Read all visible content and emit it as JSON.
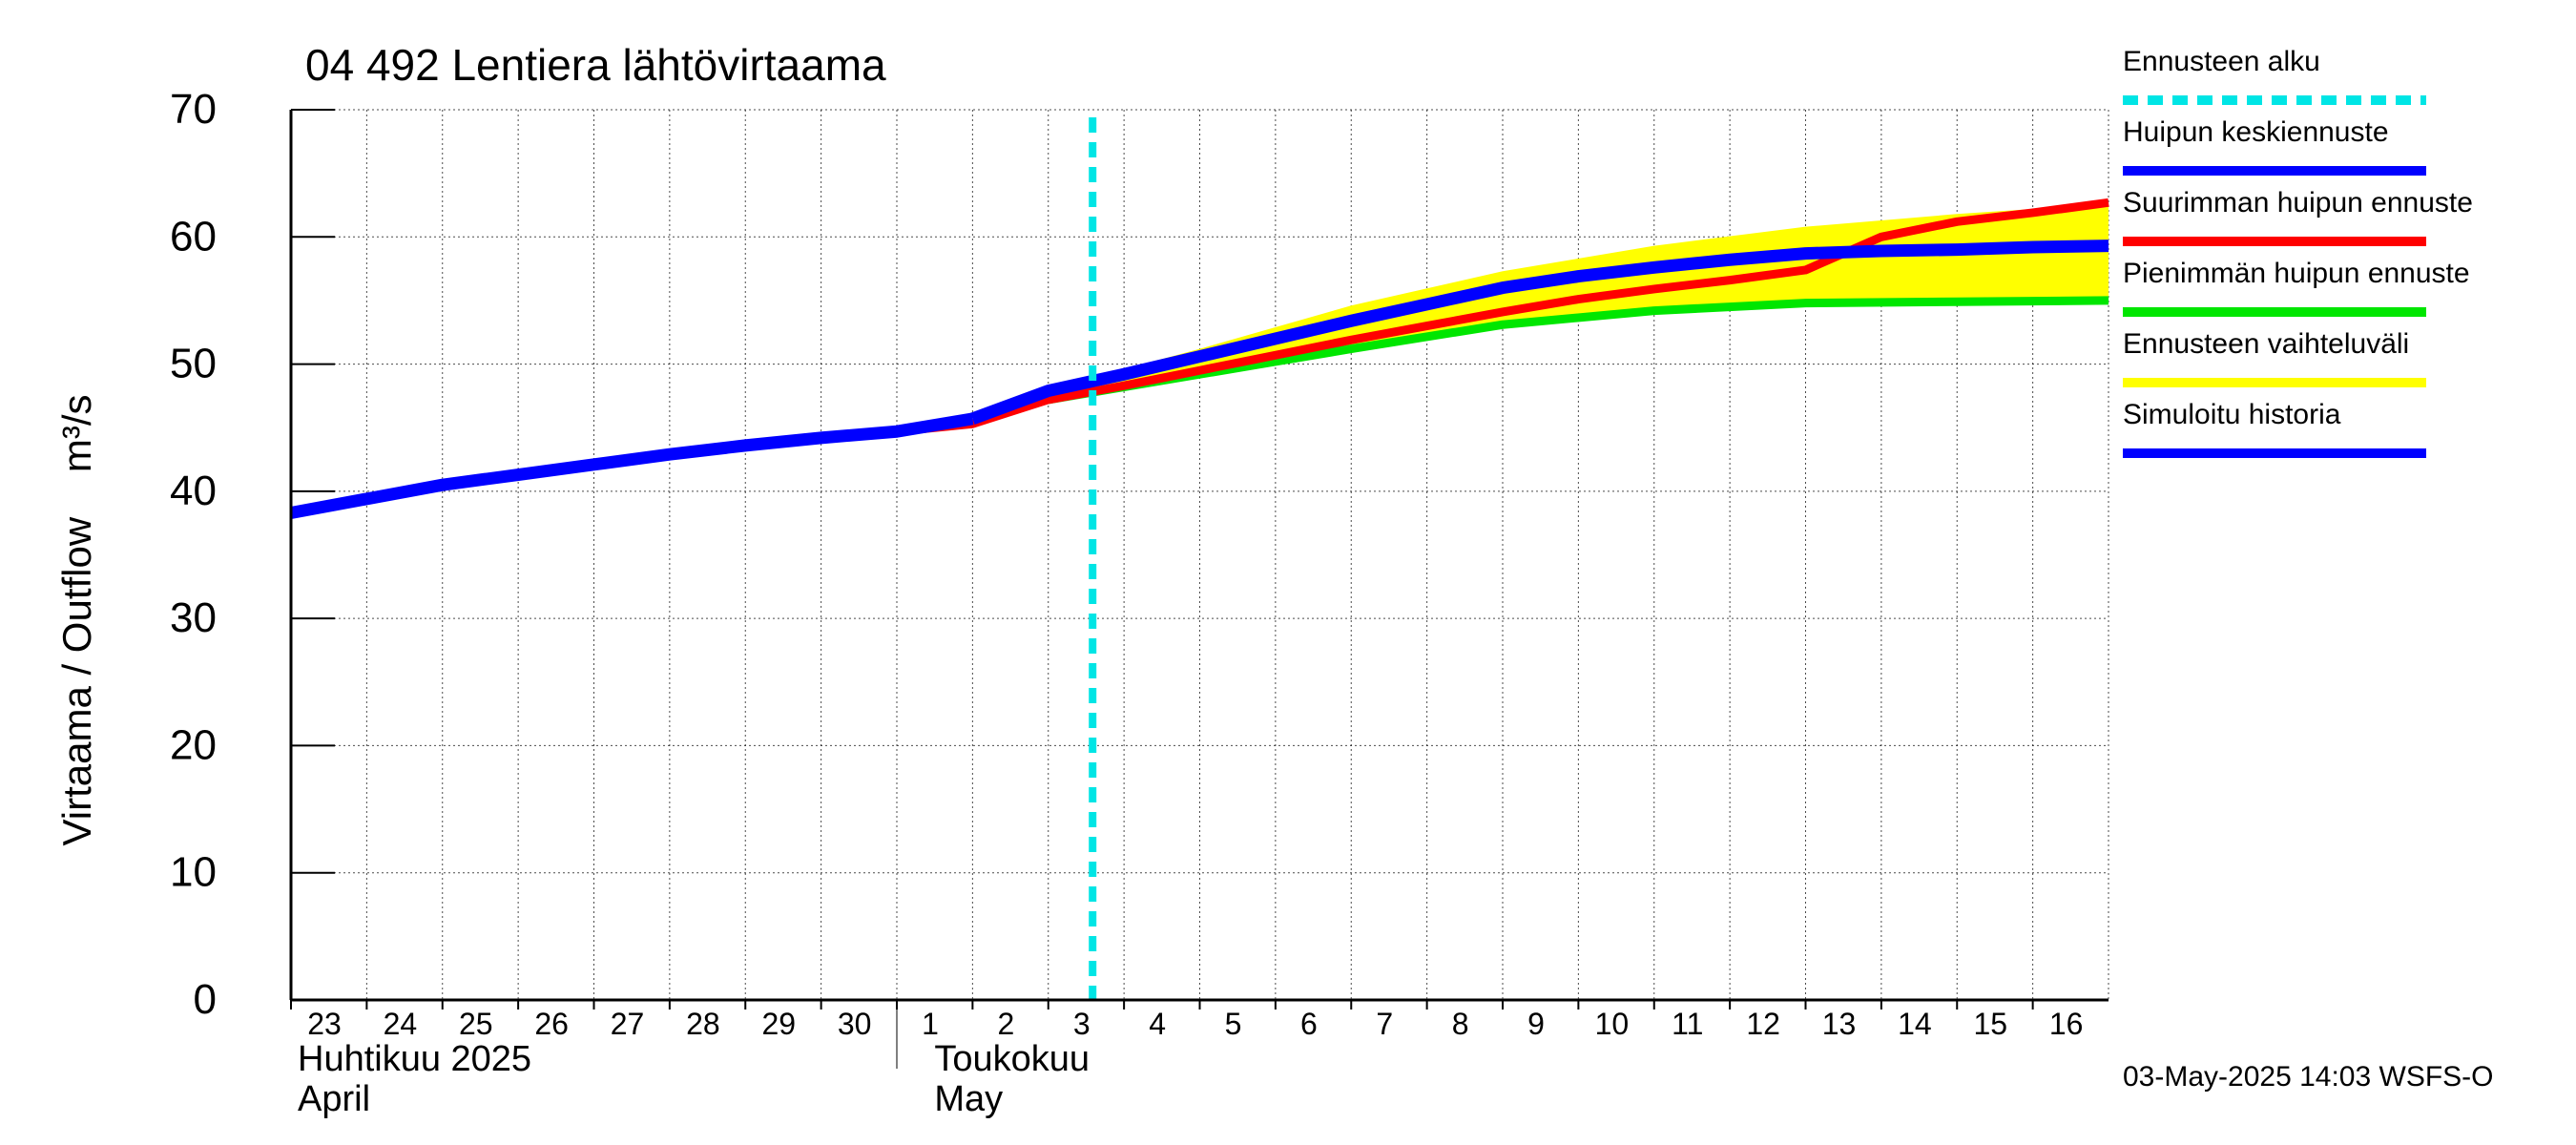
{
  "chart_data": {
    "type": "line",
    "title": "04 492 Lentiera lähtövirtaama",
    "ylabel": "Virtaama / Outflow    m³/s",
    "ylim": [
      0,
      70
    ],
    "yticks": [
      0,
      10,
      20,
      30,
      40,
      50,
      60,
      70
    ],
    "grid": true,
    "x_day_labels": [
      "23",
      "24",
      "25",
      "26",
      "27",
      "28",
      "29",
      "30",
      "1",
      "2",
      "3",
      "4",
      "5",
      "6",
      "7",
      "8",
      "9",
      "10",
      "11",
      "12",
      "13",
      "14",
      "15",
      "16"
    ],
    "x_dates": [
      "2025-04-23",
      "2025-04-24",
      "2025-04-25",
      "2025-04-26",
      "2025-04-27",
      "2025-04-28",
      "2025-04-29",
      "2025-04-30",
      "2025-05-01",
      "2025-05-02",
      "2025-05-03",
      "2025-05-04",
      "2025-05-05",
      "2025-05-06",
      "2025-05-07",
      "2025-05-08",
      "2025-05-09",
      "2025-05-10",
      "2025-05-11",
      "2025-05-12",
      "2025-05-13",
      "2025-05-14",
      "2025-05-15",
      "2025-05-16"
    ],
    "x_range": [
      "2025-04-23",
      "2025-05-17"
    ],
    "month_labels": [
      {
        "fi": "Huhtikuu  2025",
        "en": "April"
      },
      {
        "fi": "Toukokuu",
        "en": "May"
      }
    ],
    "forecast_start": "2025-05-03 14:03",
    "series": [
      {
        "name": "Ennusteen vaihteluväli",
        "color": "#ffff00",
        "x": [
          "2025-05-03",
          "2025-05-05",
          "2025-05-07",
          "2025-05-09",
          "2025-05-11",
          "2025-05-13",
          "2025-05-15",
          "2025-05-16",
          "2025-05-17"
        ],
        "lower": [
          47.2,
          49.3,
          51.3,
          53.1,
          54.2,
          54.7,
          54.9,
          55.0,
          55.0
        ],
        "upper": [
          48.0,
          51.2,
          54.6,
          57.3,
          59.3,
          60.8,
          61.8,
          62.2,
          62.5
        ]
      },
      {
        "name": "Pienimmän huipun ennuste",
        "color": "#00e600",
        "x": [
          "2025-05-03",
          "2025-05-05",
          "2025-05-07",
          "2025-05-09",
          "2025-05-11",
          "2025-05-13",
          "2025-05-15",
          "2025-05-17"
        ],
        "y": [
          47.2,
          49.2,
          51.2,
          53.1,
          54.2,
          54.8,
          54.9,
          55.0
        ]
      },
      {
        "name": "Suurimman huipun ennuste",
        "color": "#ff0000",
        "x": [
          "2025-05-01",
          "2025-05-02",
          "2025-05-03",
          "2025-05-04",
          "2025-05-05",
          "2025-05-06",
          "2025-05-07",
          "2025-05-08",
          "2025-05-09",
          "2025-05-10",
          "2025-05-11",
          "2025-05-12",
          "2025-05-13",
          "2025-05-14",
          "2025-05-15",
          "2025-05-16",
          "2025-05-17"
        ],
        "y": [
          44.7,
          45.3,
          47.2,
          48.3,
          49.5,
          50.7,
          51.9,
          53.0,
          54.1,
          55.1,
          55.9,
          56.6,
          57.4,
          60.0,
          61.2,
          61.9,
          62.7
        ]
      },
      {
        "name": "Huipun keskiennuste",
        "color": "#0000ff",
        "x": [
          "2025-05-02",
          "2025-05-03",
          "2025-05-04",
          "2025-05-05",
          "2025-05-06",
          "2025-05-07",
          "2025-05-08",
          "2025-05-09",
          "2025-05-10",
          "2025-05-11",
          "2025-05-12",
          "2025-05-13",
          "2025-05-14",
          "2025-05-15",
          "2025-05-16",
          "2025-05-17"
        ],
        "y": [
          45.7,
          47.9,
          49.2,
          50.6,
          52.0,
          53.4,
          54.7,
          56.0,
          56.9,
          57.6,
          58.2,
          58.7,
          58.9,
          59.0,
          59.2,
          59.3
        ]
      },
      {
        "name": "Simuloitu historia",
        "color": "#0000ff",
        "x": [
          "2025-04-23",
          "2025-04-24",
          "2025-04-25",
          "2025-04-26",
          "2025-04-27",
          "2025-04-28",
          "2025-04-29",
          "2025-04-30",
          "2025-05-01",
          "2025-05-02"
        ],
        "y": [
          38.3,
          39.4,
          40.5,
          41.3,
          42.1,
          42.9,
          43.6,
          44.2,
          44.7,
          45.7
        ]
      }
    ]
  },
  "legend": [
    {
      "label": "Ennusteen alku",
      "color": "#00e5e5",
      "style": "dashed"
    },
    {
      "label": "Huipun keskiennuste",
      "color": "#0000ff",
      "style": "solid"
    },
    {
      "label": "Suurimman huipun ennuste",
      "color": "#ff0000",
      "style": "solid"
    },
    {
      "label": "Pienimmän huipun ennuste",
      "color": "#00e600",
      "style": "solid"
    },
    {
      "label": "Ennusteen vaihteluväli",
      "color": "#ffff00",
      "style": "solid"
    },
    {
      "label": "Simuloitu historia",
      "color": "#0000ff",
      "style": "solid"
    }
  ],
  "footer": "03-May-2025 14:03 WSFS-O"
}
